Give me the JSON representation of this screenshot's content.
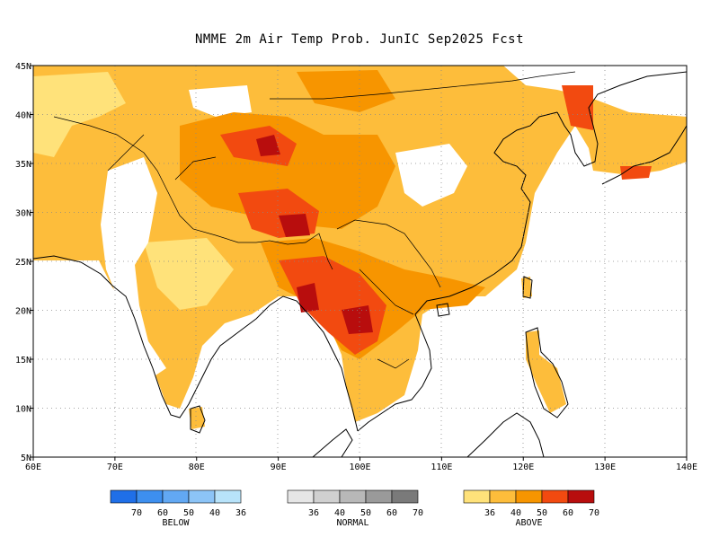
{
  "title": "NMME 2m Air Temp Prob. JunIC  Sep2025 Fcst",
  "map": {
    "lon_range": [
      60,
      140
    ],
    "lat_range": [
      5,
      45
    ],
    "lon_ticks": [
      {
        "value": 60,
        "label": "60E"
      },
      {
        "value": 70,
        "label": "70E"
      },
      {
        "value": 80,
        "label": "80E"
      },
      {
        "value": 90,
        "label": "90E"
      },
      {
        "value": 100,
        "label": "100E"
      },
      {
        "value": 110,
        "label": "110E"
      },
      {
        "value": 120,
        "label": "120E"
      },
      {
        "value": 130,
        "label": "130E"
      },
      {
        "value": 140,
        "label": "140E"
      }
    ],
    "lat_ticks": [
      {
        "value": 45,
        "label": "45N"
      },
      {
        "value": 40,
        "label": "40N"
      },
      {
        "value": 35,
        "label": "35N"
      },
      {
        "value": 30,
        "label": "30N"
      },
      {
        "value": 25,
        "label": "25N"
      },
      {
        "value": 20,
        "label": "20N"
      },
      {
        "value": 15,
        "label": "15N"
      },
      {
        "value": 10,
        "label": "10N"
      },
      {
        "value": 5,
        "label": "5N"
      }
    ],
    "grid": "dotted"
  },
  "legend": {
    "groups": [
      {
        "caption": "BELOW",
        "colors": [
          "#1f6fe8",
          "#3d8fef",
          "#62a8f3",
          "#8cc4f7",
          "#b8e3fa"
        ],
        "labels": [
          "70",
          "60",
          "50",
          "40",
          "36"
        ]
      },
      {
        "caption": "NORMAL",
        "colors": [
          "#e6e6e6",
          "#d0d0d0",
          "#b8b8b8",
          "#9a9a9a",
          "#7a7a7a"
        ],
        "labels": [
          "36",
          "40",
          "50",
          "60",
          "70"
        ]
      },
      {
        "caption": "ABOVE",
        "colors": [
          "#ffe27a",
          "#fdbd3b",
          "#f79500",
          "#f24a10",
          "#b80d0d"
        ],
        "labels": [
          "36",
          "40",
          "50",
          "60",
          "70"
        ]
      }
    ]
  }
}
